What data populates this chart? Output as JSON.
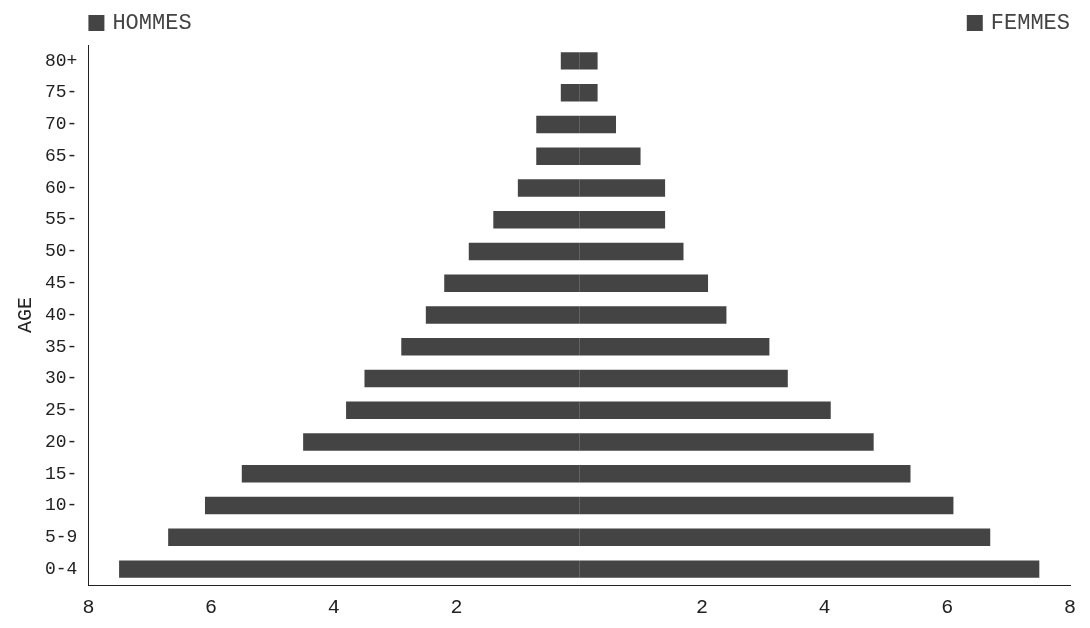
{
  "chart_data": {
    "type": "bar",
    "legend": "top",
    "orientation": "horizontal",
    "stacked": true,
    "ylabel": "AGE",
    "categories": [
      "80+",
      "75-",
      "70-",
      "65-",
      "60-",
      "55-",
      "50-",
      "45-",
      "40-",
      "35-",
      "30-",
      "25-",
      "20-",
      "15-",
      "10-",
      "5-9",
      "0-4"
    ],
    "series": [
      {
        "name": "HOMMES",
        "color": "#444444",
        "values": [
          -0.3,
          -0.3,
          -0.7,
          -0.7,
          -1.0,
          -1.4,
          -1.8,
          -2.2,
          -2.5,
          -2.9,
          -3.5,
          -3.8,
          -4.5,
          -5.5,
          -6.1,
          -6.7,
          -7.5
        ]
      },
      {
        "name": "FEMMES",
        "color": "#444444",
        "values": [
          0.3,
          0.3,
          0.6,
          1.0,
          1.4,
          1.4,
          1.7,
          2.1,
          2.4,
          3.1,
          3.4,
          4.1,
          4.8,
          5.4,
          6.1,
          6.7,
          7.5
        ]
      }
    ],
    "xlim": [
      -8,
      8
    ],
    "xticks": [
      {
        "value": -8,
        "label": "8"
      },
      {
        "value": -6,
        "label": "6"
      },
      {
        "value": -4,
        "label": "4"
      },
      {
        "value": -2,
        "label": "2"
      },
      2,
      4,
      6,
      8
    ]
  }
}
